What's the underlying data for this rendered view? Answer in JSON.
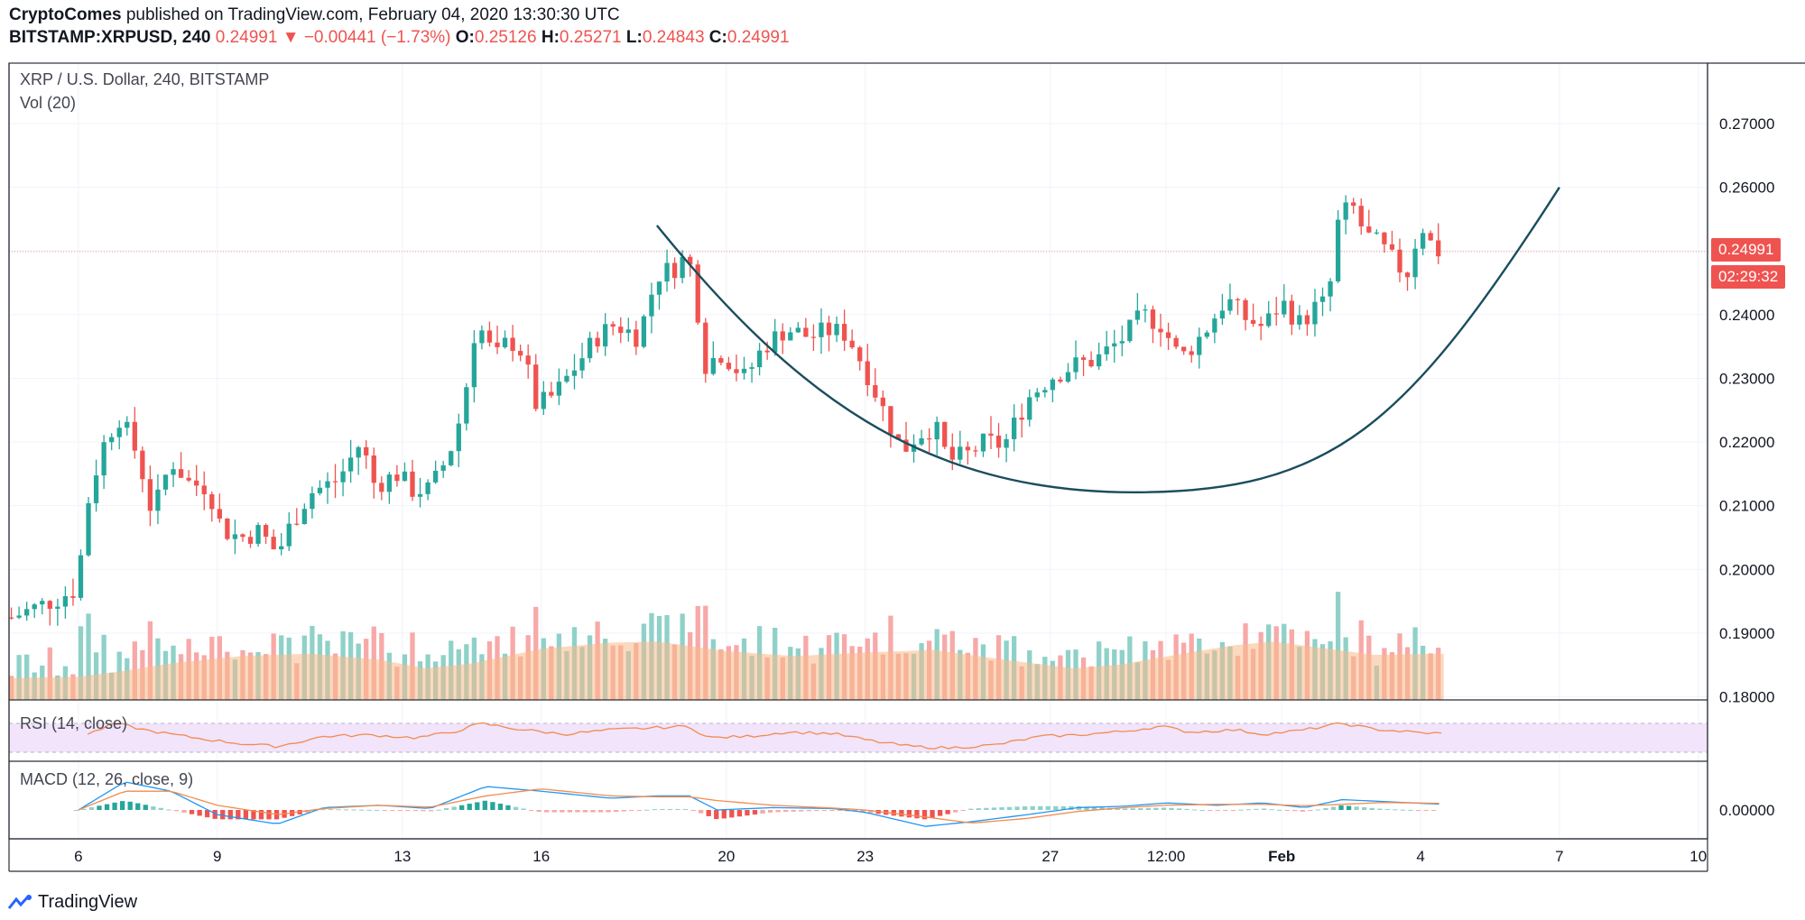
{
  "header": {
    "author": "CryptoComes",
    "published": "published on TradingView.com, February 04, 2020 13:30:30 UTC",
    "symbol": "BITSTAMP:XRPUSD, 240",
    "last": "0.24991",
    "change": "−0.00441 (−1.73%)",
    "o_label": "O:",
    "o_value": "0.25126",
    "h_label": "H:",
    "h_value": "0.25271",
    "l_label": "L:",
    "l_value": "0.24843",
    "c_label": "C:",
    "c_value": "0.24991",
    "change_arrow_icon": "down-triangle-icon"
  },
  "panes": {
    "main_title": "XRP / U.S. Dollar, 240, BITSTAMP",
    "volume_title": "Vol (20)",
    "rsi_title": "RSI (14, close)",
    "macd_title": "MACD (12, 26, close, 9)"
  },
  "price_label": {
    "value": "0.24991",
    "countdown": "02:29:32"
  },
  "brand": {
    "name": "TradingView",
    "icon": "tradingview-logo-icon"
  },
  "colors": {
    "up": "#26a69a",
    "down": "#ef5350",
    "vol_up": "#8fd1c9",
    "vol_down": "#f7a9a7",
    "vol_ma": "#f7b98a",
    "rsi_band": "#f1e4fb",
    "rsi_line": "#f28b4f",
    "macd_line": "#2196f3",
    "signal_line": "#f28b4f",
    "arc": "#1b4d5e"
  },
  "chart_data": {
    "type": "candlestick",
    "x_tick_labels": [
      "6",
      "9",
      "13",
      "16",
      "20",
      "23",
      "27",
      "12:00",
      "Feb",
      "4",
      "7",
      "10"
    ],
    "x_tick_days": [
      6,
      9,
      13,
      16,
      20,
      23,
      27,
      29.5,
      32,
      35,
      38,
      41
    ],
    "x_range_days": [
      4.5,
      41.2
    ],
    "y_ticks": [
      "0.27000",
      "0.26000",
      "0.25000",
      "0.24000",
      "0.23000",
      "0.22000",
      "0.21000",
      "0.20000",
      "0.19000",
      "0.18000"
    ],
    "y_tick_values": [
      0.27,
      0.26,
      0.25,
      0.24,
      0.23,
      0.22,
      0.21,
      0.2,
      0.19,
      0.18
    ],
    "y_range": [
      0.1795,
      0.2795
    ],
    "macd_y_ticks": [
      "0.00000"
    ],
    "last_price": 0.24991,
    "close_path": [
      [
        4.5,
        0.1923
      ],
      [
        5.5,
        0.1953
      ],
      [
        6.0,
        0.1971
      ],
      [
        6.1,
        0.207
      ],
      [
        6.3,
        0.2137
      ],
      [
        6.6,
        0.2208
      ],
      [
        6.9,
        0.224
      ],
      [
        7.3,
        0.2175
      ],
      [
        7.6,
        0.2085
      ],
      [
        8.0,
        0.2172
      ],
      [
        8.4,
        0.2135
      ],
      [
        8.8,
        0.213
      ],
      [
        9.1,
        0.2063
      ],
      [
        9.5,
        0.205
      ],
      [
        9.9,
        0.206
      ],
      [
        10.3,
        0.2025
      ],
      [
        10.6,
        0.2072
      ],
      [
        11.0,
        0.212
      ],
      [
        11.6,
        0.214
      ],
      [
        12.1,
        0.22
      ],
      [
        12.4,
        0.2132
      ],
      [
        12.9,
        0.215
      ],
      [
        13.2,
        0.2125
      ],
      [
        13.6,
        0.2125
      ],
      [
        14.0,
        0.218
      ],
      [
        14.3,
        0.225
      ],
      [
        14.6,
        0.2392
      ],
      [
        15.0,
        0.233
      ],
      [
        15.3,
        0.2362
      ],
      [
        15.6,
        0.234
      ],
      [
        15.9,
        0.2255
      ],
      [
        16.3,
        0.2275
      ],
      [
        16.8,
        0.2325
      ],
      [
        17.2,
        0.2365
      ],
      [
        17.6,
        0.2385
      ],
      [
        18.1,
        0.2365
      ],
      [
        18.5,
        0.2462
      ],
      [
        18.9,
        0.2475
      ],
      [
        19.1,
        0.249
      ],
      [
        19.3,
        0.2465
      ],
      [
        19.5,
        0.232
      ],
      [
        19.9,
        0.234
      ],
      [
        20.4,
        0.23
      ],
      [
        20.8,
        0.235
      ],
      [
        21.3,
        0.2378
      ],
      [
        21.8,
        0.2365
      ],
      [
        22.2,
        0.2375
      ],
      [
        22.6,
        0.237
      ],
      [
        23.0,
        0.2315
      ],
      [
        23.3,
        0.2265
      ],
      [
        23.8,
        0.2185
      ],
      [
        24.1,
        0.221
      ],
      [
        24.5,
        0.2225
      ],
      [
        24.8,
        0.217
      ],
      [
        25.2,
        0.218
      ],
      [
        25.6,
        0.22
      ],
      [
        26.0,
        0.2195
      ],
      [
        26.5,
        0.2268
      ],
      [
        27.0,
        0.2302
      ],
      [
        27.5,
        0.232
      ],
      [
        28.0,
        0.233
      ],
      [
        28.6,
        0.2365
      ],
      [
        29.0,
        0.24
      ],
      [
        29.4,
        0.2385
      ],
      [
        29.8,
        0.233
      ],
      [
        30.3,
        0.237
      ],
      [
        30.8,
        0.2425
      ],
      [
        31.2,
        0.2395
      ],
      [
        31.6,
        0.238
      ],
      [
        32.0,
        0.242
      ],
      [
        32.4,
        0.2385
      ],
      [
        32.7,
        0.241
      ],
      [
        33.0,
        0.242
      ],
      [
        33.2,
        0.254
      ],
      [
        33.5,
        0.2575
      ],
      [
        33.8,
        0.2525
      ],
      [
        34.1,
        0.251
      ],
      [
        34.4,
        0.2485
      ],
      [
        34.7,
        0.2462
      ],
      [
        35.0,
        0.2545
      ],
      [
        35.3,
        0.25
      ],
      [
        35.5,
        0.2499
      ]
    ],
    "volume_ma_path": [
      [
        4.5,
        0.18
      ],
      [
        6.0,
        0.19
      ],
      [
        7.0,
        0.24
      ],
      [
        8.0,
        0.3
      ],
      [
        9.5,
        0.36
      ],
      [
        11.0,
        0.38
      ],
      [
        12.5,
        0.33
      ],
      [
        13.5,
        0.26
      ],
      [
        14.5,
        0.3
      ],
      [
        16.0,
        0.42
      ],
      [
        17.5,
        0.47
      ],
      [
        18.5,
        0.48
      ],
      [
        20.0,
        0.4
      ],
      [
        21.5,
        0.36
      ],
      [
        23.0,
        0.39
      ],
      [
        24.5,
        0.41
      ],
      [
        26.0,
        0.33
      ],
      [
        27.5,
        0.26
      ],
      [
        28.5,
        0.29
      ],
      [
        30.0,
        0.39
      ],
      [
        31.0,
        0.45
      ],
      [
        31.8,
        0.48
      ],
      [
        33.0,
        0.42
      ],
      [
        34.0,
        0.37
      ],
      [
        35.5,
        0.38
      ]
    ],
    "rsi_path": [
      [
        6.2,
        55
      ],
      [
        6.8,
        70
      ],
      [
        7.5,
        60
      ],
      [
        8.5,
        50
      ],
      [
        9.5,
        42
      ],
      [
        10.3,
        38
      ],
      [
        11.3,
        52
      ],
      [
        12.3,
        54
      ],
      [
        13.3,
        50
      ],
      [
        14.1,
        58
      ],
      [
        14.7,
        70
      ],
      [
        15.5,
        62
      ],
      [
        16.5,
        55
      ],
      [
        17.5,
        61
      ],
      [
        18.5,
        64
      ],
      [
        19.2,
        66
      ],
      [
        19.6,
        50
      ],
      [
        20.5,
        52
      ],
      [
        21.3,
        58
      ],
      [
        22.3,
        56
      ],
      [
        23.2,
        45
      ],
      [
        24.0,
        38
      ],
      [
        24.8,
        36
      ],
      [
        25.8,
        40
      ],
      [
        26.8,
        52
      ],
      [
        27.6,
        54
      ],
      [
        28.6,
        59
      ],
      [
        29.4,
        66
      ],
      [
        30.0,
        58
      ],
      [
        31.0,
        61
      ],
      [
        31.6,
        55
      ],
      [
        32.4,
        60
      ],
      [
        33.3,
        70
      ],
      [
        34.0,
        62
      ],
      [
        35.0,
        57
      ],
      [
        35.5,
        56
      ]
    ],
    "macd_path": [
      [
        6.0,
        0
      ],
      [
        7.0,
        0.006
      ],
      [
        8.0,
        0.004
      ],
      [
        9.0,
        -0.001
      ],
      [
        10.3,
        -0.003
      ],
      [
        11.3,
        0.0005
      ],
      [
        12.5,
        0.001
      ],
      [
        13.6,
        0.0003
      ],
      [
        14.8,
        0.005
      ],
      [
        16.0,
        0.004
      ],
      [
        17.5,
        0.0025
      ],
      [
        18.5,
        0.003
      ],
      [
        19.2,
        0.003
      ],
      [
        19.8,
        0
      ],
      [
        21.0,
        0.0005
      ],
      [
        22.3,
        0.0003
      ],
      [
        23.0,
        -0.0005
      ],
      [
        24.3,
        -0.0035
      ],
      [
        25.3,
        -0.0025
      ],
      [
        26.5,
        -0.001
      ],
      [
        27.6,
        0.0005
      ],
      [
        28.6,
        0.0008
      ],
      [
        29.5,
        0.0015
      ],
      [
        30.6,
        0.001
      ],
      [
        31.6,
        0.0015
      ],
      [
        32.5,
        0.0005
      ],
      [
        33.3,
        0.0022
      ],
      [
        34.2,
        0.0018
      ],
      [
        35.5,
        0.0012
      ]
    ],
    "signal_path": [
      [
        6.0,
        0
      ],
      [
        7.0,
        0.004
      ],
      [
        8.0,
        0.004
      ],
      [
        9.0,
        0.001
      ],
      [
        10.3,
        -0.001
      ],
      [
        11.3,
        0.0003
      ],
      [
        12.5,
        0.001
      ],
      [
        13.6,
        0.0006
      ],
      [
        14.8,
        0.003
      ],
      [
        16.0,
        0.0045
      ],
      [
        17.5,
        0.003
      ],
      [
        18.5,
        0.0028
      ],
      [
        19.2,
        0.0028
      ],
      [
        19.8,
        0.002
      ],
      [
        21.0,
        0.001
      ],
      [
        22.3,
        0.0004
      ],
      [
        23.0,
        0
      ],
      [
        24.3,
        -0.0015
      ],
      [
        25.3,
        -0.0028
      ],
      [
        26.5,
        -0.0018
      ],
      [
        27.6,
        -0.0003
      ],
      [
        28.6,
        0.0005
      ],
      [
        29.5,
        0.001
      ],
      [
        30.6,
        0.0012
      ],
      [
        31.6,
        0.0012
      ],
      [
        32.5,
        0.0009
      ],
      [
        33.3,
        0.0012
      ],
      [
        34.2,
        0.0016
      ],
      [
        35.5,
        0.0014
      ]
    ],
    "drawing_arc": {
      "start": [
        18.5,
        0.254
      ],
      "bottom": [
        28.8,
        0.2121
      ],
      "end": [
        38.0,
        0.26
      ]
    }
  }
}
